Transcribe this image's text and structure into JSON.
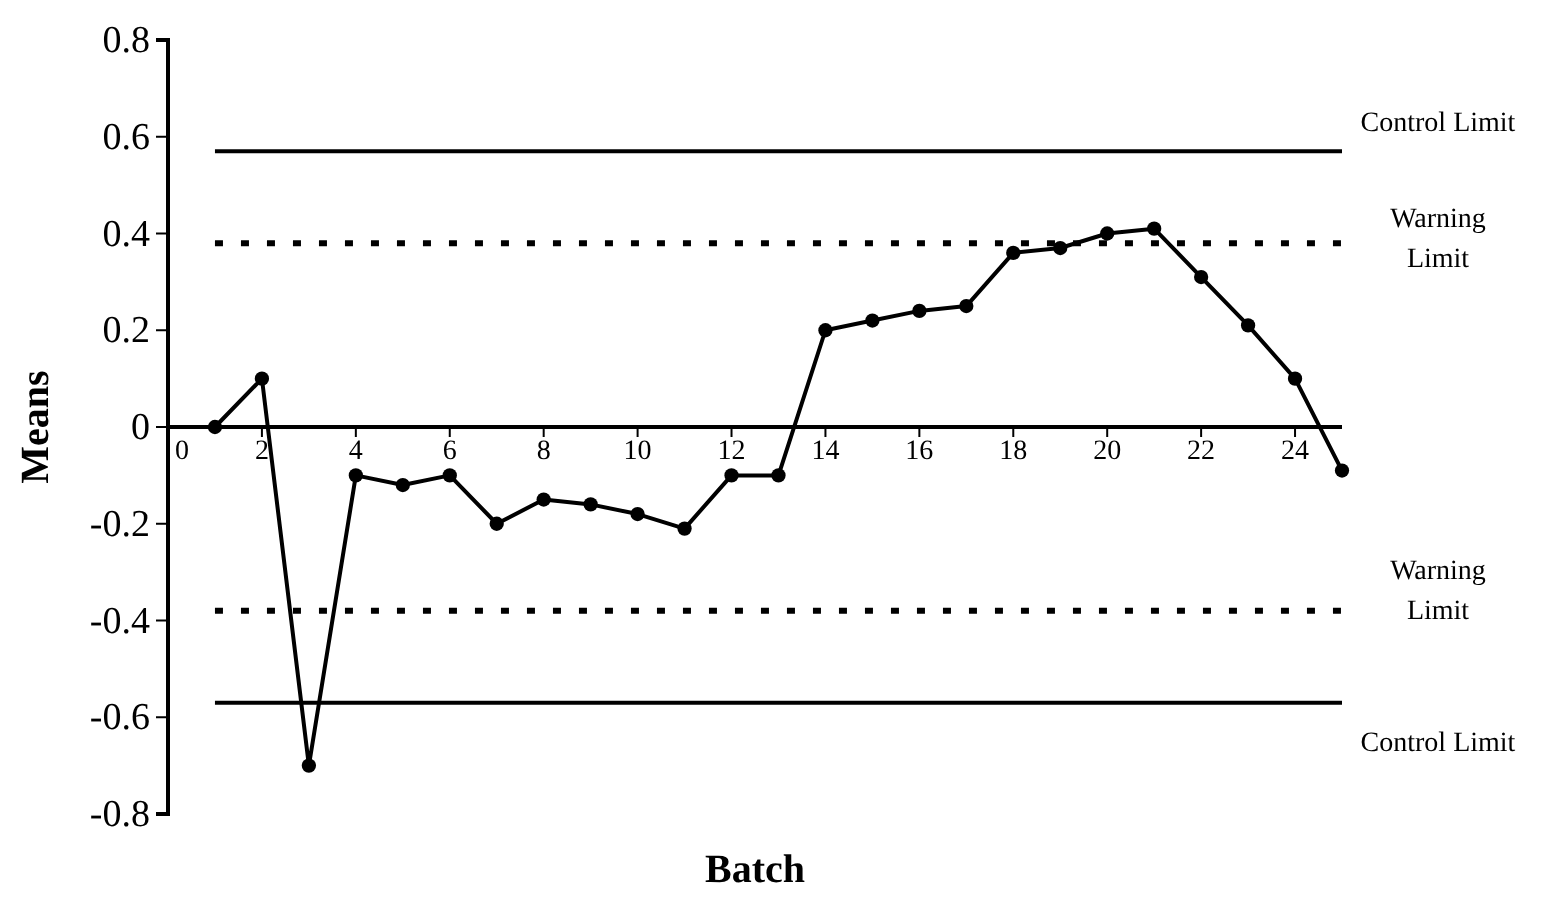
{
  "chart_data": {
    "type": "line",
    "xlabel": "Batch",
    "ylabel": "Means",
    "x": [
      1,
      2,
      3,
      4,
      5,
      6,
      7,
      8,
      9,
      10,
      11,
      12,
      13,
      14,
      15,
      16,
      17,
      18,
      19,
      20,
      21,
      22,
      23,
      24,
      25
    ],
    "series": [
      {
        "color": "#000000",
        "values": [
          0,
          0.1,
          -0.7,
          -0.1,
          -0.12,
          -0.1,
          -0.2,
          -0.15,
          -0.16,
          -0.18,
          -0.21,
          -0.1,
          -0.1,
          0.2,
          0.22,
          0.24,
          0.25,
          0.36,
          0.37,
          0.4,
          0.41,
          0.31,
          0.21,
          0.1,
          -0.09
        ]
      }
    ],
    "xlim": [
      0,
      25
    ],
    "xticks": [
      0,
      2,
      4,
      6,
      8,
      10,
      12,
      14,
      16,
      18,
      20,
      22,
      24
    ],
    "ylim": [
      -0.8,
      0.8
    ],
    "yticks": [
      -0.8,
      -0.6,
      -0.4,
      -0.2,
      0,
      0.2,
      0.4,
      0.6,
      0.8
    ],
    "marker": "circle",
    "line_style": "solid",
    "ref_lines": [
      {
        "axis": "y",
        "value": 0.57,
        "label": "Control Limit",
        "line_style": "solid"
      },
      {
        "axis": "y",
        "value": 0.38,
        "label": "Warning\nLimit",
        "line_style": "dotted"
      },
      {
        "axis": "y",
        "value": -0.38,
        "label": "Warning\nLimit",
        "line_style": "dotted"
      },
      {
        "axis": "y",
        "value": -0.57,
        "label": "Control Limit",
        "line_style": "solid"
      }
    ]
  }
}
